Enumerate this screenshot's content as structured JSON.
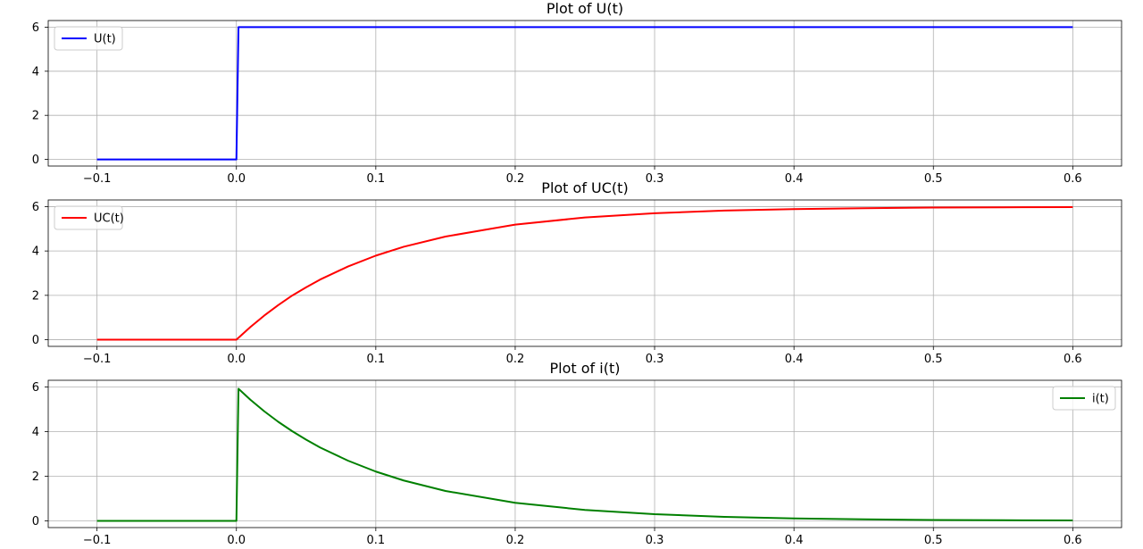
{
  "chart_data": [
    {
      "type": "line",
      "title": "Plot of U(t)",
      "xlim": [
        -0.135,
        0.635
      ],
      "ylim": [
        -0.3,
        6.3
      ],
      "xticks": [
        -0.1,
        0.0,
        0.1,
        0.2,
        0.3,
        0.4,
        0.5,
        0.6
      ],
      "xtick_labels": [
        "−0.1",
        "0.0",
        "0.1",
        "0.2",
        "0.3",
        "0.4",
        "0.5",
        "0.6"
      ],
      "yticks": [
        0,
        2,
        4,
        6
      ],
      "ytick_labels": [
        "0",
        "2",
        "4",
        "6"
      ],
      "grid": true,
      "legend_position": "upper-left",
      "series": [
        {
          "name": "U(t)",
          "color": "#0000ff",
          "x": [
            -0.1,
            0.0,
            0.0015,
            0.6
          ],
          "y": [
            0,
            0,
            6,
            6
          ]
        }
      ]
    },
    {
      "type": "line",
      "title": "Plot of UC(t)",
      "xlim": [
        -0.135,
        0.635
      ],
      "ylim": [
        -0.3,
        6.3
      ],
      "xticks": [
        -0.1,
        0.0,
        0.1,
        0.2,
        0.3,
        0.4,
        0.5,
        0.6
      ],
      "xtick_labels": [
        "−0.1",
        "0.0",
        "0.1",
        "0.2",
        "0.3",
        "0.4",
        "0.5",
        "0.6"
      ],
      "yticks": [
        0,
        2,
        4,
        6
      ],
      "ytick_labels": [
        "0",
        "2",
        "4",
        "6"
      ],
      "grid": true,
      "legend_position": "upper-left",
      "series": [
        {
          "name": "UC(t)",
          "color": "#ff0000",
          "x": [
            -0.1,
            0.0,
            0.01,
            0.02,
            0.03,
            0.04,
            0.05,
            0.06,
            0.08,
            0.1,
            0.12,
            0.15,
            0.2,
            0.25,
            0.3,
            0.35,
            0.4,
            0.45,
            0.5,
            0.55,
            0.6
          ],
          "y": [
            0,
            0,
            0.57,
            1.09,
            1.56,
            1.99,
            2.36,
            2.71,
            3.3,
            3.79,
            4.19,
            4.65,
            5.19,
            5.51,
            5.7,
            5.82,
            5.89,
            5.93,
            5.96,
            5.97,
            5.98
          ]
        }
      ]
    },
    {
      "type": "line",
      "title": "Plot of i(t)",
      "xlim": [
        -0.135,
        0.635
      ],
      "ylim": [
        -0.3,
        6.3
      ],
      "xticks": [
        -0.1,
        0.0,
        0.1,
        0.2,
        0.3,
        0.4,
        0.5,
        0.6
      ],
      "xtick_labels": [
        "−0.1",
        "0.0",
        "0.1",
        "0.2",
        "0.3",
        "0.4",
        "0.5",
        "0.6"
      ],
      "yticks": [
        0,
        2,
        4,
        6
      ],
      "ytick_labels": [
        "0",
        "2",
        "4",
        "6"
      ],
      "grid": true,
      "legend_position": "upper-right",
      "series": [
        {
          "name": "i(t)",
          "color": "#008000",
          "x": [
            -0.1,
            0.0,
            0.0015,
            0.01,
            0.02,
            0.03,
            0.04,
            0.05,
            0.06,
            0.08,
            0.1,
            0.12,
            0.15,
            0.2,
            0.25,
            0.3,
            0.35,
            0.4,
            0.45,
            0.5,
            0.55,
            0.6
          ],
          "y": [
            0,
            0,
            5.92,
            5.43,
            4.91,
            4.44,
            4.02,
            3.64,
            3.29,
            2.7,
            2.21,
            1.81,
            1.34,
            0.81,
            0.49,
            0.3,
            0.18,
            0.11,
            0.07,
            0.04,
            0.03,
            0.02
          ]
        }
      ]
    }
  ]
}
